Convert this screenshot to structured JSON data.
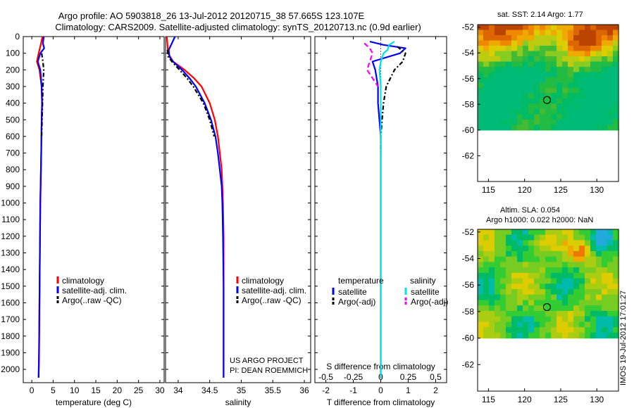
{
  "header": {
    "line1": "Argo profile: AO 5903818_26 13-Jul-2012 20120715_38 57.665S 123.107E",
    "line2": "Climatology: CARS2009. Satellite-adjusted climatology: synTS_20120713.nc (0.9d earlier)"
  },
  "credits": {
    "project": "US ARGO PROJECT",
    "pi": "PI: DEAN ROEMMICH",
    "stamp": "IMOS 19-Jul-2012 17:01:27"
  },
  "colors": {
    "climatology": "#ff0000",
    "satellite": "#0000ff",
    "argo": "#000000",
    "salinity_satellite": "#00e5e5",
    "salinity_argo": "#ff00ff"
  },
  "chart_data": [
    {
      "type": "line",
      "id": "temperature",
      "xlabel": "temperature (deg C)",
      "ylabel": "",
      "xlim": [
        -2,
        31
      ],
      "ylim": [
        2080,
        0
      ],
      "xticks": [
        0,
        5,
        10,
        15,
        20,
        25,
        30
      ],
      "yticks": [
        0,
        100,
        200,
        300,
        400,
        500,
        600,
        700,
        800,
        900,
        1000,
        1100,
        1200,
        1300,
        1400,
        1500,
        1600,
        1700,
        1800,
        1900,
        2000
      ],
      "legend": [
        "climatology",
        "satellite-adj. clim.",
        "Argo(..raw -QC)"
      ],
      "series": [
        {
          "name": "climatology",
          "style": "solid",
          "color": "#ff0000",
          "y": [
            0,
            60,
            100,
            150,
            200,
            300,
            400,
            500,
            700,
            1000,
            1300,
            1600,
            1900,
            2050
          ],
          "x": [
            2.5,
            2.0,
            1.6,
            1.2,
            1.8,
            2.3,
            2.4,
            2.3,
            2.2,
            2.0,
            1.9,
            1.8,
            1.7,
            1.6
          ]
        },
        {
          "name": "satellite-adj. clim.",
          "style": "solid",
          "color": "#0000ff",
          "y": [
            0,
            40,
            70,
            100,
            150,
            200,
            300,
            400,
            500,
            700,
            1000,
            1300,
            1600,
            1900,
            2050
          ],
          "x": [
            2.8,
            2.6,
            2.9,
            2.0,
            1.4,
            2.0,
            2.3,
            2.4,
            2.3,
            2.2,
            2.0,
            1.9,
            1.8,
            1.7,
            1.6
          ]
        },
        {
          "name": "Argo(..raw -QC)",
          "style": "dashdot",
          "color": "#000000",
          "y": [
            100,
            150,
            200,
            250,
            300,
            400,
            500,
            600
          ],
          "x": [
            2.3,
            2.6,
            2.8,
            2.7,
            2.6,
            2.5,
            2.4,
            2.3
          ]
        }
      ]
    },
    {
      "type": "line",
      "id": "salinity",
      "xlabel": "salinity",
      "ylabel": "",
      "xlim": [
        33.8,
        36.1
      ],
      "ylim": [
        2080,
        0
      ],
      "xticks": [
        34,
        34.5,
        35,
        35.5,
        36
      ],
      "legend": [
        "climatology",
        "satellite-adj. clim.",
        "Argo(..raw -QC)"
      ],
      "series": [
        {
          "name": "climatology",
          "style": "solid",
          "color": "#ff0000",
          "y": [
            0,
            100,
            150,
            200,
            250,
            300,
            400,
            500,
            600,
            700,
            800,
            900,
            1000,
            1200,
            1500,
            2050
          ],
          "x": [
            33.82,
            33.84,
            33.92,
            34.1,
            34.25,
            34.37,
            34.5,
            34.58,
            34.63,
            34.66,
            34.69,
            34.7,
            34.71,
            34.72,
            34.72,
            34.72
          ]
        },
        {
          "name": "satellite-adj. clim.",
          "style": "solid",
          "color": "#0000ff",
          "y": [
            0,
            40,
            80,
            120,
            150,
            200,
            250,
            300,
            400,
            500,
            600,
            700,
            800,
            900,
            1000,
            1200,
            1500,
            2050
          ],
          "x": [
            33.95,
            33.9,
            33.85,
            33.86,
            33.92,
            34.06,
            34.18,
            34.28,
            34.42,
            34.52,
            34.59,
            34.63,
            34.66,
            34.69,
            34.7,
            34.71,
            34.72,
            34.72
          ]
        },
        {
          "name": "Argo(..raw -QC)",
          "style": "dashdot",
          "color": "#000000",
          "y": [
            80,
            120,
            150,
            200,
            250,
            300,
            400,
            500,
            600
          ],
          "x": [
            33.83,
            33.84,
            33.9,
            34.02,
            34.14,
            34.24,
            34.4,
            34.5,
            34.57
          ]
        }
      ]
    },
    {
      "type": "line",
      "id": "differences",
      "xlabel": "T difference from climatology",
      "xlabel_top": "S difference from climatology",
      "ylabel": "",
      "xlim": [
        -2.4,
        2.4
      ],
      "ylim": [
        2080,
        0
      ],
      "xticks": [
        -2,
        -1,
        0,
        1,
        2
      ],
      "sticks": [
        -0.5,
        -0.25,
        0,
        0.25,
        0.5
      ],
      "legend_headers": [
        "temperature",
        "salinity"
      ],
      "legend": [
        "satellite",
        "Argo(-adj)",
        "satellite",
        "Argo(-adj)"
      ],
      "series": [
        {
          "name": "satellite",
          "group": "temperature",
          "style": "solid",
          "color": "#0000ff",
          "y": [
            30,
            50,
            70,
            100,
            150,
            200,
            300,
            400,
            600,
            1000,
            1500,
            2050
          ],
          "x": [
            -0.4,
            0.1,
            0.9,
            0.7,
            -0.3,
            -0.2,
            -0.1,
            -0.1,
            0.0,
            0.0,
            0.0,
            0.0
          ]
        },
        {
          "name": "Argo(-adj)",
          "group": "temperature",
          "style": "dashdot",
          "color": "#000000",
          "y": [
            60,
            100,
            150,
            200,
            300,
            400,
            500,
            600,
            700
          ],
          "x": [
            0.6,
            0.9,
            0.8,
            0.5,
            0.2,
            0.1,
            0.05,
            0.0,
            0.0
          ]
        },
        {
          "name": "satellite",
          "group": "salinity",
          "style": "solid",
          "color": "#00e5e5",
          "y": [
            30,
            50,
            80,
            100,
            150,
            200,
            300,
            400,
            600,
            1000,
            2050
          ],
          "x": [
            0.5,
            0.3,
            0.25,
            0.1,
            0.0,
            -0.05,
            0.0,
            0.0,
            0.0,
            0.0,
            0.0
          ]
        },
        {
          "name": "Argo(-adj)",
          "group": "salinity",
          "style": "dashed",
          "color": "#ff00ff",
          "y": [
            40,
            70,
            100,
            150,
            200,
            250,
            300
          ],
          "x": [
            -0.6,
            -0.4,
            -0.3,
            -0.4,
            -0.5,
            -0.3,
            -0.1
          ]
        }
      ]
    },
    {
      "type": "heatmap",
      "id": "sst-map",
      "title": "sat. SST: 2.14  Argo: 1.77",
      "xlim": [
        113.5,
        133
      ],
      "ylim": [
        -64,
        -51.8
      ],
      "xticks": [
        115,
        120,
        125,
        130
      ],
      "yticks": [
        -52,
        -54,
        -56,
        -58,
        -60,
        -62
      ],
      "data_extent_lat": [
        -60,
        -51.8
      ],
      "marker": {
        "lon": 123.1,
        "lat": -57.665
      }
    },
    {
      "type": "heatmap",
      "id": "sla-map",
      "title": "Altim. SLA: 0.054",
      "subtitle": "Argo h1000: 0.022  h2000: NaN",
      "xlim": [
        113.5,
        133
      ],
      "ylim": [
        -64,
        -51.8
      ],
      "xticks": [
        115,
        120,
        125,
        130
      ],
      "yticks": [
        -52,
        -54,
        -56,
        -58,
        -60,
        -62
      ],
      "data_extent_lat": [
        -60,
        -51.8
      ],
      "marker": {
        "lon": 123.1,
        "lat": -57.665
      }
    }
  ]
}
